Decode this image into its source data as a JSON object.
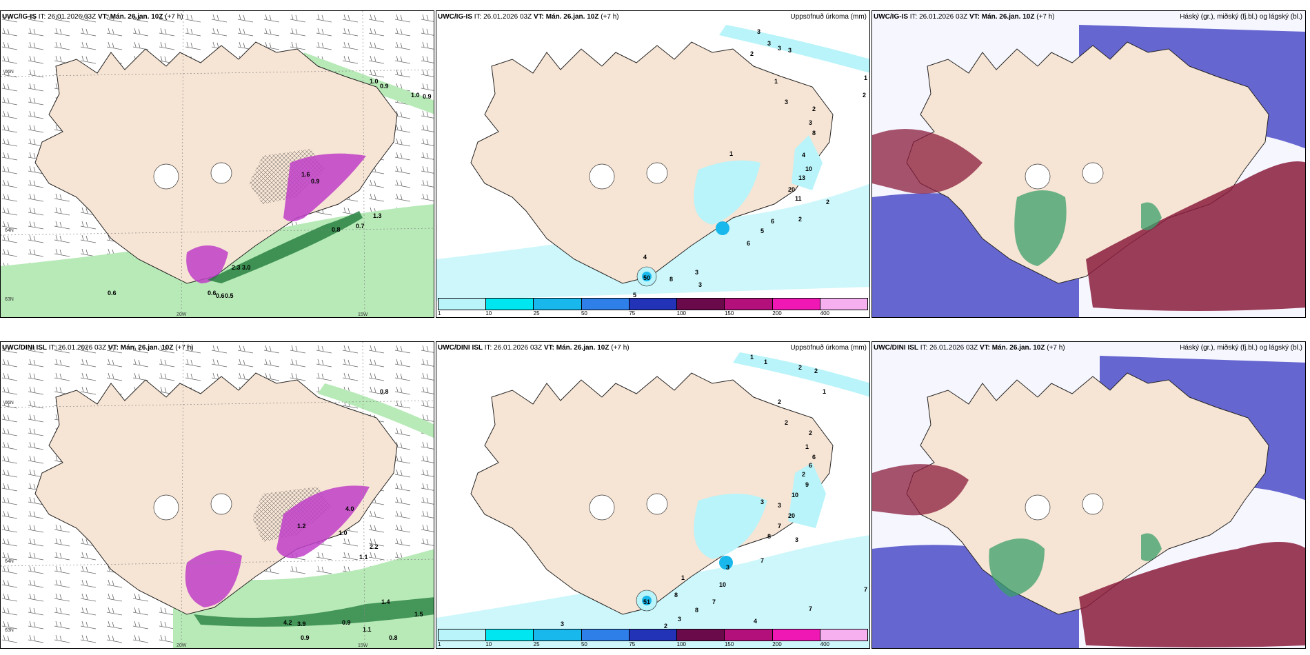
{
  "rows": [
    {
      "panels": [
        {
          "model": "UWC/IG-IS",
          "it_label": "IT:",
          "it": "26.01.2026 03Z",
          "vt_label": "VT:",
          "vt": "Mán. 26.jan. 10Z",
          "lead": "(+7 h)",
          "right": ""
        },
        {
          "model": "UWC/IG-IS",
          "it_label": "IT:",
          "it": "26.01.2026 03Z",
          "vt_label": "VT:",
          "vt": "Mán. 26.jan. 10Z",
          "lead": "(+7 h)",
          "right": "Uppsöfnuð úrkoma (mm)"
        },
        {
          "model": "UWC/IG-IS",
          "it_label": "IT:",
          "it": "26.01.2026 03Z",
          "vt_label": "VT:",
          "vt": "Mán. 26.jan. 10Z",
          "lead": "(+7 h)",
          "right": "Háský (gr.), miðský (fj.bl.) og lágský (bl.)"
        }
      ]
    },
    {
      "panels": [
        {
          "model": "UWC/DINI ISL",
          "it_label": "IT:",
          "it": "26.01.2026 03Z",
          "vt_label": "VT:",
          "vt": "Mán. 26.jan. 10Z",
          "lead": "(+7 h)",
          "right": ""
        },
        {
          "model": "UWC/DINI ISL",
          "it_label": "IT:",
          "it": "26.01.2026 03Z",
          "vt_label": "VT:",
          "vt": "Mán. 26.jan. 10Z",
          "lead": "(+7 h)",
          "right": "Uppsöfnuð úrkoma (mm)"
        },
        {
          "model": "UWC/DINI ISL",
          "it_label": "IT:",
          "it": "26.01.2026 03Z",
          "vt_label": "VT:",
          "vt": "Mán. 26.jan. 10Z",
          "lead": "(+7 h)",
          "right": "Háský (gr.), miðský (fj.bl.) og lágský (bl.)"
        }
      ]
    }
  ],
  "axes": {
    "lat_66": "66N",
    "lat_64": "64N",
    "lat_63": "63N",
    "lon_20": "20W",
    "lon_15": "15W"
  },
  "precip_legend": {
    "ticks": [
      "1",
      "10",
      "25",
      "50",
      "75",
      "100",
      "150",
      "200",
      "400"
    ],
    "colors": [
      "#b8f4fa",
      "#00e6f0",
      "#18b8ec",
      "#2f7fe8",
      "#2233b8",
      "#6a0a4a",
      "#b4107c",
      "#f018b4",
      "#f6b0f0"
    ]
  },
  "colors": {
    "land": "#f6e4d4",
    "green_light": "#b8eab8",
    "green_dark": "#1f7a3a",
    "purple": "#c040c8",
    "cloud_low": "#4c4cc8",
    "cloud_mid": "#8a1c3c",
    "cloud_high": "#3aa06a",
    "precip_light": "#b8f4fa"
  },
  "values": {
    "top_left": [
      "1.0",
      "0.9",
      "1.0",
      "0.9",
      "0.8",
      "0.7",
      "1.3",
      "0.6",
      "0.6",
      "0.6",
      "0.5",
      "2.3",
      "3.0",
      "1.6",
      "0.9"
    ],
    "top_mid": [
      "3",
      "2",
      "3",
      "3",
      "3",
      "1",
      "1",
      "3",
      "2",
      "2",
      "3",
      "8",
      "4",
      "10",
      "13",
      "20",
      "11",
      "2",
      "2",
      "6",
      "5",
      "6",
      "3",
      "4",
      "50",
      "8",
      "3",
      "5",
      "1"
    ],
    "bot_left": [
      "0.8",
      "1.0",
      "1.1",
      "2.2",
      "4.2",
      "3.9",
      "0.9",
      "1.1",
      "0.8",
      "1.4",
      "0.9",
      "1.5",
      "1.2",
      "4.0"
    ],
    "bot_mid": [
      "1",
      "1",
      "2",
      "2",
      "1",
      "2",
      "2",
      "2",
      "1",
      "6",
      "6",
      "2",
      "9",
      "10",
      "20",
      "3",
      "3",
      "7",
      "8",
      "3",
      "7",
      "1",
      "8",
      "10",
      "7",
      "8",
      "51",
      "3",
      "3",
      "2",
      "4",
      "7",
      "7",
      "3"
    ]
  }
}
